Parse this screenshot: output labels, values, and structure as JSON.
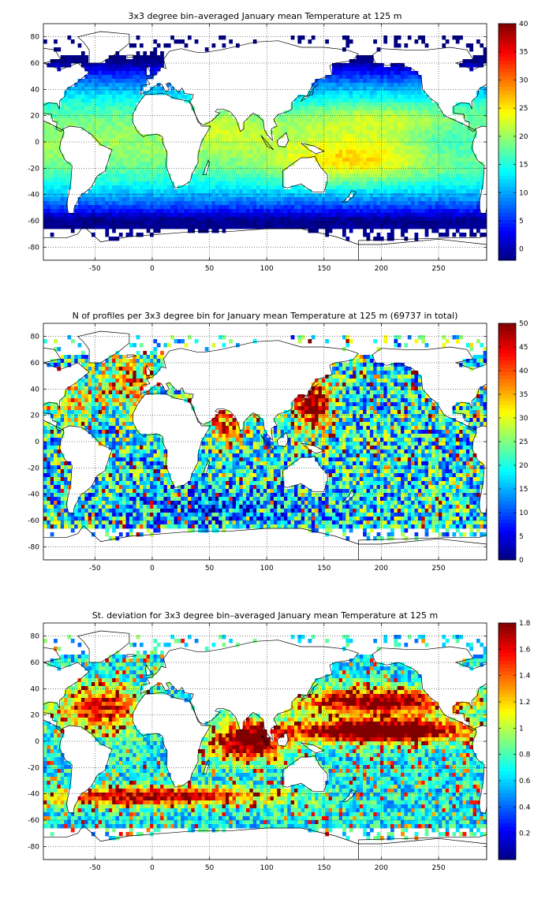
{
  "chart_data": [
    {
      "type": "heatmap",
      "title": "3x3 degree bin–averaged January mean Temperature at 125 m",
      "xlim": [
        -95,
        292
      ],
      "ylim": [
        -90,
        90
      ],
      "x_ticks": [
        -50,
        0,
        50,
        100,
        150,
        200,
        250
      ],
      "y_ticks": [
        80,
        60,
        40,
        20,
        0,
        -20,
        -40,
        -60,
        -80
      ],
      "colorbar": {
        "min": -2,
        "max": 40,
        "ticks": [
          40,
          35,
          30,
          25,
          20,
          15,
          10,
          5,
          0
        ],
        "colormap": "jet"
      },
      "grid": true,
      "bin_size_degrees": 3,
      "field": "temperature"
    },
    {
      "type": "heatmap",
      "title": "N of profiles per 3x3 degree bin for January mean Temperature at 125 m (69737 in total)",
      "xlim": [
        -95,
        292
      ],
      "ylim": [
        -90,
        90
      ],
      "x_ticks": [
        -50,
        0,
        50,
        100,
        150,
        200,
        250
      ],
      "y_ticks": [
        80,
        60,
        40,
        20,
        0,
        -20,
        -40,
        -60,
        -80
      ],
      "colorbar": {
        "min": 0,
        "max": 50,
        "ticks": [
          50,
          45,
          40,
          35,
          30,
          25,
          20,
          15,
          10,
          5,
          0
        ],
        "colormap": "jet"
      },
      "grid": true,
      "bin_size_degrees": 3,
      "field": "count"
    },
    {
      "type": "heatmap",
      "title": "St. deviation for 3x3 degree bin–averaged January mean Temperature at 125 m",
      "xlim": [
        -95,
        292
      ],
      "ylim": [
        -90,
        90
      ],
      "x_ticks": [
        -50,
        0,
        50,
        100,
        150,
        200,
        250
      ],
      "y_ticks": [
        80,
        60,
        40,
        20,
        0,
        -20,
        -40,
        -60,
        -80
      ],
      "colorbar": {
        "min": 0,
        "max": 1.8,
        "ticks": [
          1.8,
          1.6,
          1.4,
          1.2,
          1,
          0.8,
          0.6,
          0.4,
          0.2
        ],
        "colormap": "jet"
      },
      "grid": true,
      "bin_size_degrees": 3,
      "field": "stdev"
    }
  ]
}
